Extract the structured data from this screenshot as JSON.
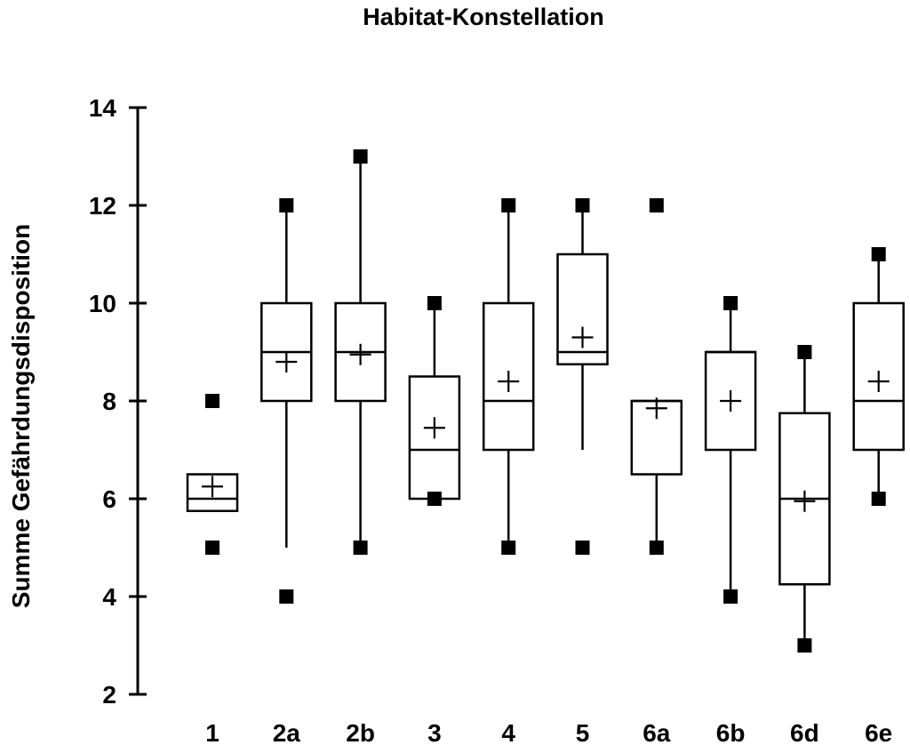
{
  "chart_data": {
    "type": "boxplot",
    "title": "Habitat-Konstellation",
    "xlabel": "",
    "ylabel": "Summe Gefährdungsdisposition",
    "ylim": [
      2,
      14
    ],
    "yticks": [
      2,
      4,
      6,
      8,
      10,
      12,
      14
    ],
    "grid": false,
    "categories": [
      "1",
      "2a",
      "2b",
      "3",
      "4",
      "5",
      "6a",
      "6b",
      "6d",
      "6e"
    ],
    "boxes": [
      {
        "category": "1",
        "q1": 5.75,
        "median": 6,
        "q3": 6.5,
        "mean": 6.25,
        "whisker_low": 5.75,
        "whisker_high": 6.5,
        "min": 5,
        "max": 8
      },
      {
        "category": "2a",
        "q1": 8,
        "median": 9,
        "q3": 10,
        "mean": 8.8,
        "whisker_low": 5,
        "whisker_high": 12,
        "min": 4,
        "max": 12
      },
      {
        "category": "2b",
        "q1": 8,
        "median": 9,
        "q3": 10,
        "mean": 8.95,
        "whisker_low": 5,
        "whisker_high": 13,
        "min": 5,
        "max": 13
      },
      {
        "category": "3",
        "q1": 6,
        "median": 7,
        "q3": 8.5,
        "mean": 7.45,
        "whisker_low": 6,
        "whisker_high": 10,
        "min": 6,
        "max": 10
      },
      {
        "category": "4",
        "q1": 7,
        "median": 8,
        "q3": 10,
        "mean": 8.4,
        "whisker_low": 5,
        "whisker_high": 12,
        "min": 5,
        "max": 12
      },
      {
        "category": "5",
        "q1": 8.75,
        "median": 9,
        "q3": 11,
        "mean": 9.3,
        "whisker_low": 7,
        "whisker_high": 12,
        "min": 5,
        "max": 12
      },
      {
        "category": "6a",
        "q1": 6.5,
        "median": 8,
        "q3": 8,
        "mean": 7.85,
        "whisker_low": 5,
        "whisker_high": 8,
        "min": 5,
        "max": 12
      },
      {
        "category": "6b",
        "q1": 7,
        "median": 9,
        "q3": 9,
        "mean": 8.0,
        "whisker_low": 4,
        "whisker_high": 10,
        "min": 4,
        "max": 10
      },
      {
        "category": "6d",
        "q1": 4.25,
        "median": 6,
        "q3": 7.75,
        "mean": 5.95,
        "whisker_low": 3,
        "whisker_high": 9,
        "min": 3,
        "max": 9
      },
      {
        "category": "6e",
        "q1": 7,
        "median": 8,
        "q3": 10,
        "mean": 8.4,
        "whisker_low": 6,
        "whisker_high": 11,
        "min": 6,
        "max": 11
      }
    ]
  }
}
